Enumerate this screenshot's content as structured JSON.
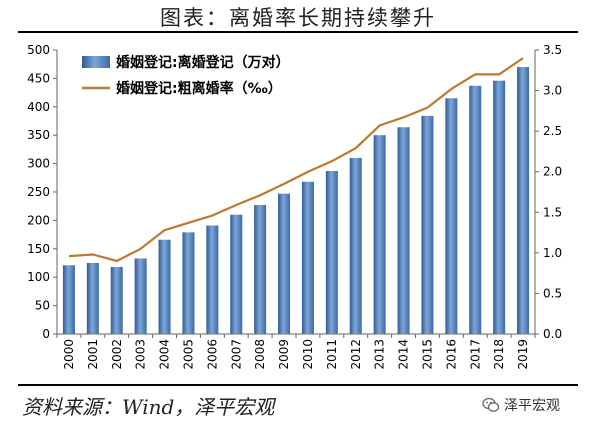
{
  "title": "图表：离婚率长期持续攀升",
  "source": "资料来源：Wind，泽平宏观",
  "watermark": "泽平宏观",
  "chart_data": {
    "type": "bar",
    "categories": [
      "2000",
      "2001",
      "2002",
      "2003",
      "2004",
      "2005",
      "2006",
      "2007",
      "2008",
      "2009",
      "2010",
      "2011",
      "2012",
      "2013",
      "2014",
      "2015",
      "2016",
      "2017",
      "2018",
      "2019"
    ],
    "series": [
      {
        "name": "婚姻登记:离婚登记（万对）",
        "type": "bar",
        "axis": "left",
        "color": "#4f81bd",
        "values": [
          121,
          125,
          118,
          133,
          166,
          179,
          191,
          210,
          227,
          247,
          268,
          287,
          310,
          350,
          364,
          384,
          415,
          437,
          446,
          470
        ]
      },
      {
        "name": "婚姻登记:粗离婚率（‰）",
        "type": "line",
        "axis": "right",
        "color": "#c0772e",
        "values": [
          0.96,
          0.98,
          0.9,
          1.05,
          1.28,
          1.37,
          1.46,
          1.59,
          1.71,
          1.85,
          2.0,
          2.13,
          2.29,
          2.57,
          2.67,
          2.79,
          3.02,
          3.2,
          3.2,
          3.4
        ]
      }
    ],
    "y_left": {
      "lim": [
        0,
        500
      ],
      "ticks": [
        "0",
        "50",
        "100",
        "150",
        "200",
        "250",
        "300",
        "350",
        "400",
        "450",
        "500"
      ]
    },
    "y_right": {
      "lim": [
        0,
        3.5
      ],
      "ticks": [
        "0.0",
        "0.5",
        "1.0",
        "1.5",
        "2.0",
        "2.5",
        "3.0",
        "3.5"
      ]
    },
    "grid": false,
    "legend_position": "top-left"
  }
}
